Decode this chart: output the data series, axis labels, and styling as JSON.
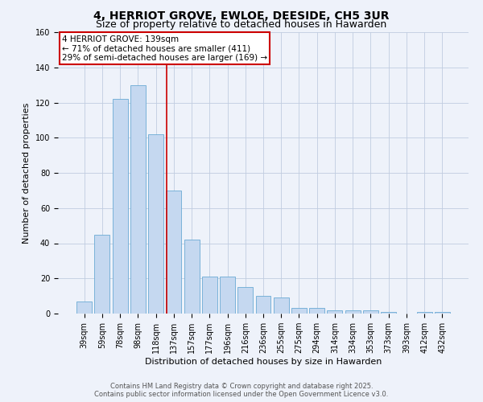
{
  "title": "4, HERRIOT GROVE, EWLOE, DEESIDE, CH5 3UR",
  "subtitle": "Size of property relative to detached houses in Hawarden",
  "xlabel": "Distribution of detached houses by size in Hawarden",
  "ylabel": "Number of detached properties",
  "bar_labels": [
    "39sqm",
    "59sqm",
    "78sqm",
    "98sqm",
    "118sqm",
    "137sqm",
    "157sqm",
    "177sqm",
    "196sqm",
    "216sqm",
    "236sqm",
    "255sqm",
    "275sqm",
    "294sqm",
    "314sqm",
    "334sqm",
    "353sqm",
    "373sqm",
    "393sqm",
    "412sqm",
    "432sqm"
  ],
  "bar_values": [
    7,
    45,
    122,
    130,
    102,
    70,
    42,
    21,
    21,
    15,
    10,
    9,
    3,
    3,
    2,
    2,
    2,
    1,
    0,
    1,
    1
  ],
  "bar_color": "#c5d8f0",
  "bar_edge_color": "#6aaad4",
  "vline_color": "#cc0000",
  "annotation_text": "4 HERRIOT GROVE: 139sqm\n← 71% of detached houses are smaller (411)\n29% of semi-detached houses are larger (169) →",
  "annotation_box_color": "white",
  "annotation_box_edge_color": "#cc0000",
  "ylim": [
    0,
    160
  ],
  "yticks": [
    0,
    20,
    40,
    60,
    80,
    100,
    120,
    140,
    160
  ],
  "footer1": "Contains HM Land Registry data © Crown copyright and database right 2025.",
  "footer2": "Contains public sector information licensed under the Open Government Licence v3.0.",
  "background_color": "#eef2fa",
  "grid_color": "#c0cce0",
  "title_fontsize": 10,
  "subtitle_fontsize": 9,
  "tick_fontsize": 7,
  "ylabel_fontsize": 8,
  "xlabel_fontsize": 8,
  "annotation_fontsize": 7.5,
  "footer_fontsize": 6
}
